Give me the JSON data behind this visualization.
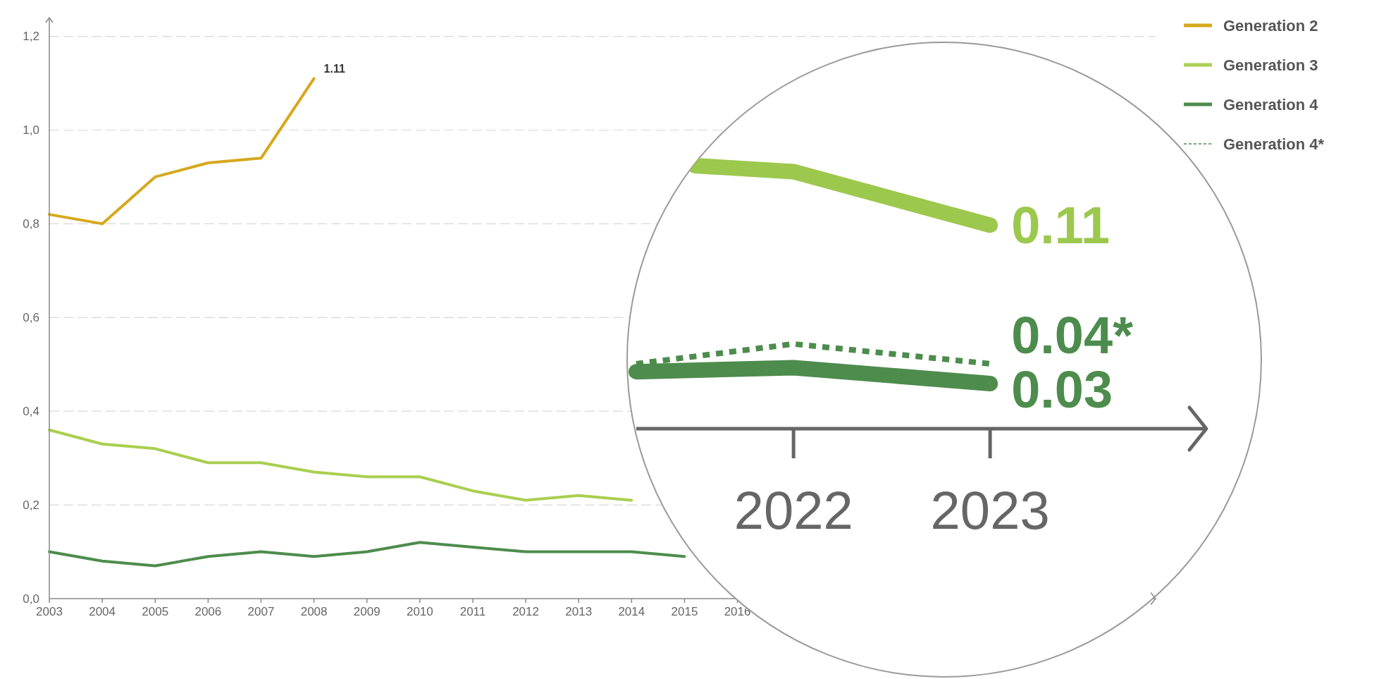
{
  "chart_data": [
    {
      "type": "line",
      "x": [
        2003,
        2004,
        2005,
        2006,
        2007,
        2008,
        2009,
        2010,
        2011,
        2012,
        2013,
        2014,
        2015
      ],
      "xlim": [
        2003,
        2023.9
      ],
      "xticks": [
        2003,
        2004,
        2005,
        2006,
        2007,
        2008,
        2009,
        2010,
        2011,
        2012,
        2013,
        2014,
        2015,
        2016
      ],
      "ylim": [
        0,
        1.24
      ],
      "yticks": [
        {
          "value": 0,
          "label": "0,0"
        },
        {
          "value": 0.2,
          "label": "0,2"
        },
        {
          "value": 0.4,
          "label": "0,4"
        },
        {
          "value": 0.6,
          "label": "0,6"
        },
        {
          "value": 0.8,
          "label": "0,8"
        },
        {
          "value": 1.0,
          "label": "1,0"
        },
        {
          "value": 1.2,
          "label": "1,2"
        }
      ],
      "grid": "y",
      "legend": "top right",
      "series": [
        {
          "name": "Generation 2",
          "color": "#d6a81e",
          "values": [
            0.82,
            0.8,
            0.9,
            0.93,
            0.94,
            1.11,
            null,
            null,
            null,
            null,
            null,
            null,
            null
          ],
          "value_labels": [
            null,
            null,
            null,
            null,
            null,
            "1.11",
            null,
            null,
            null,
            null,
            null,
            null,
            null
          ]
        },
        {
          "name": "Generation 3",
          "color": "#a9cf50",
          "values": [
            0.36,
            0.33,
            0.32,
            0.29,
            0.29,
            0.27,
            0.26,
            0.26,
            0.23,
            0.21,
            0.22,
            0.21,
            null
          ]
        },
        {
          "name": "Generation 4",
          "color": "#4d8c4d",
          "values": [
            0.1,
            0.08,
            0.07,
            0.09,
            0.1,
            0.09,
            0.1,
            0.12,
            0.11,
            0.1,
            0.1,
            0.1,
            0.09
          ]
        }
      ]
    },
    {
      "type": "line",
      "tick_labels": "x",
      "xlim": [
        2021.2,
        2024.1
      ],
      "xticks": [
        2022,
        2023
      ],
      "legend": "top right",
      "series": [
        {
          "color": "#9cc84e",
          "x": [
            2021.5,
            2022,
            2023
          ],
          "values": [
            0.14,
            0.137,
            0.11
          ],
          "value_labels": [
            null,
            null,
            "0.11"
          ]
        },
        {
          "color": "#4d8c4d",
          "x": [
            2021.2,
            2022,
            2023
          ],
          "values": [
            0.036,
            0.038,
            0.03
          ],
          "value_labels": [
            null,
            null,
            "0.03"
          ]
        },
        {
          "name": "Generation 4*",
          "color": "#4d8c4d",
          "line_style": "dashed",
          "x": [
            2021.2,
            2022,
            2023
          ],
          "values": [
            0.04,
            0.05,
            0.04
          ],
          "value_labels": [
            null,
            null,
            "0.04*"
          ]
        }
      ]
    }
  ]
}
